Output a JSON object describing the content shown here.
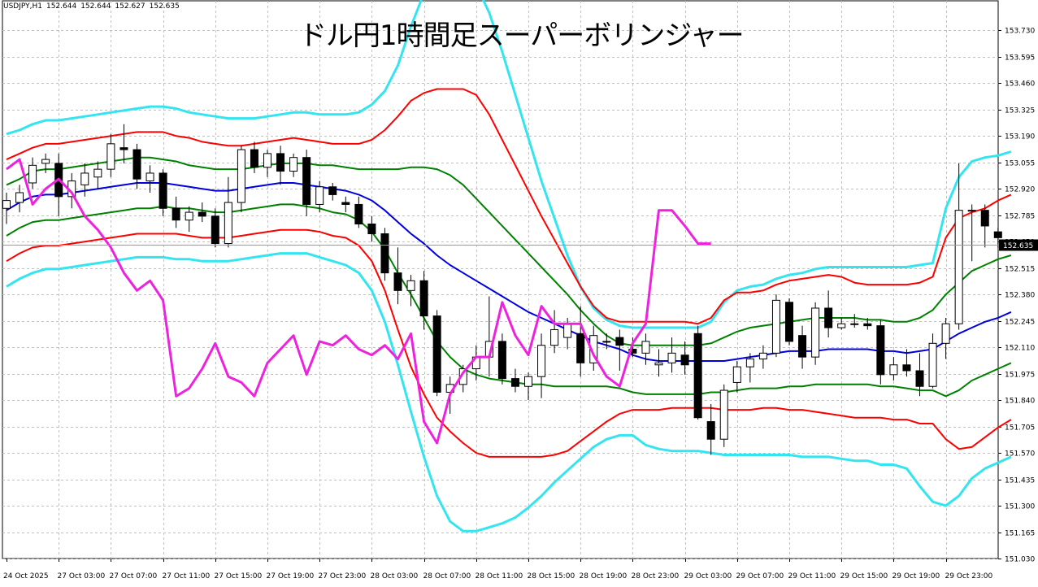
{
  "symbol_info": {
    "symbol": "USDJPY,H1",
    "open": "152.644",
    "high": "152.644",
    "low": "152.627",
    "close": "152.635"
  },
  "title": "ドル円1時間足スーパーボリンジャー",
  "current_price_label": "152.635",
  "colors": {
    "background": "#ffffff",
    "grid": "#c0c0c0",
    "sma": "#0000dd",
    "sigma1": "#008000",
    "sigma2": "#ff0000",
    "sigma3": "#33e5f0",
    "lagging_span": "#ee22dd",
    "bull_candle": "#ffffff",
    "bear_candle": "#000000"
  },
  "chart_data": {
    "type": "candlestick",
    "title": "ドル円1時間足スーパーボリンジャー",
    "symbol": "USDJPY,H1",
    "ylim": [
      151.03,
      153.86
    ],
    "y_ticks": [
      "153.730",
      "153.595",
      "153.460",
      "153.325",
      "153.190",
      "153.055",
      "152.920",
      "152.785",
      "152.650",
      "152.515",
      "152.380",
      "152.245",
      "152.110",
      "151.975",
      "151.840",
      "151.705",
      "151.570",
      "151.435",
      "151.300",
      "151.165",
      "151.030"
    ],
    "x_ticks": [
      {
        "bar": 0,
        "label": "24 Oct 2025"
      },
      {
        "bar": 4,
        "label": "27 Oct 03:00"
      },
      {
        "bar": 8,
        "label": "27 Oct 07:00"
      },
      {
        "bar": 12,
        "label": "27 Oct 11:00"
      },
      {
        "bar": 16,
        "label": "27 Oct 15:00"
      },
      {
        "bar": 20,
        "label": "27 Oct 19:00"
      },
      {
        "bar": 24,
        "label": "27 Oct 23:00"
      },
      {
        "bar": 28,
        "label": "28 Oct 03:00"
      },
      {
        "bar": 32,
        "label": "28 Oct 07:00"
      },
      {
        "bar": 36,
        "label": "28 Oct 11:00"
      },
      {
        "bar": 40,
        "label": "28 Oct 15:00"
      },
      {
        "bar": 44,
        "label": "28 Oct 19:00"
      },
      {
        "bar": 48,
        "label": "28 Oct 23:00"
      },
      {
        "bar": 52,
        "label": "29 Oct 03:00"
      },
      {
        "bar": 56,
        "label": "29 Oct 07:00"
      },
      {
        "bar": 60,
        "label": "29 Oct 11:00"
      },
      {
        "bar": 64,
        "label": "29 Oct 15:00"
      },
      {
        "bar": 68,
        "label": "29 Oct 19:00"
      },
      {
        "bar": 72,
        "label": "29 Oct 23:00"
      }
    ],
    "current_price": 152.635,
    "ohlc": [
      [
        152.82,
        152.9,
        152.74,
        152.86
      ],
      [
        152.85,
        152.94,
        152.8,
        152.9
      ],
      [
        152.95,
        153.08,
        152.92,
        153.04
      ],
      [
        153.05,
        153.1,
        153.0,
        153.07
      ],
      [
        153.05,
        153.1,
        152.78,
        152.88
      ],
      [
        152.88,
        153.0,
        152.82,
        152.96
      ],
      [
        152.94,
        153.05,
        152.88,
        153.0
      ],
      [
        152.98,
        153.06,
        152.92,
        153.02
      ],
      [
        153.02,
        153.2,
        152.98,
        153.15
      ],
      [
        153.13,
        153.25,
        153.05,
        153.12
      ],
      [
        153.12,
        153.15,
        152.92,
        152.97
      ],
      [
        152.96,
        153.04,
        152.9,
        153.0
      ],
      [
        153.0,
        153.02,
        152.78,
        152.82
      ],
      [
        152.82,
        152.88,
        152.72,
        152.76
      ],
      [
        152.76,
        152.83,
        152.7,
        152.8
      ],
      [
        152.8,
        152.85,
        152.75,
        152.78
      ],
      [
        152.78,
        152.82,
        152.62,
        152.64
      ],
      [
        152.64,
        152.98,
        152.62,
        152.85
      ],
      [
        152.85,
        153.14,
        152.8,
        153.12
      ],
      [
        153.12,
        153.16,
        153.0,
        153.03
      ],
      [
        153.03,
        153.12,
        152.98,
        153.1
      ],
      [
        153.1,
        153.14,
        152.94,
        153.01
      ],
      [
        153.01,
        153.1,
        152.98,
        153.08
      ],
      [
        153.08,
        153.12,
        152.78,
        152.84
      ],
      [
        152.84,
        152.96,
        152.8,
        152.93
      ],
      [
        152.93,
        152.95,
        152.86,
        152.89
      ],
      [
        152.85,
        152.88,
        152.8,
        152.84
      ],
      [
        152.84,
        152.88,
        152.72,
        152.74
      ],
      [
        152.74,
        152.78,
        152.65,
        152.69
      ],
      [
        152.69,
        152.72,
        152.45,
        152.49
      ],
      [
        152.49,
        152.62,
        152.33,
        152.4
      ],
      [
        152.4,
        152.48,
        152.32,
        152.45
      ],
      [
        152.45,
        152.5,
        152.2,
        152.27
      ],
      [
        152.27,
        152.3,
        151.86,
        151.88
      ],
      [
        151.88,
        151.96,
        151.77,
        151.92
      ],
      [
        151.92,
        152.02,
        151.88,
        152.0
      ],
      [
        152.0,
        152.12,
        151.94,
        152.06
      ],
      [
        152.06,
        152.37,
        151.96,
        152.14
      ],
      [
        152.14,
        152.18,
        151.92,
        151.95
      ],
      [
        151.95,
        152.0,
        151.88,
        151.91
      ],
      [
        151.91,
        151.98,
        151.84,
        151.96
      ],
      [
        151.96,
        152.18,
        151.85,
        152.12
      ],
      [
        152.12,
        152.3,
        152.08,
        152.2
      ],
      [
        152.16,
        152.26,
        152.1,
        152.23
      ],
      [
        152.18,
        152.32,
        151.96,
        152.03
      ],
      [
        152.03,
        152.22,
        151.99,
        152.17
      ],
      [
        152.14,
        152.18,
        152.1,
        152.14
      ],
      [
        152.16,
        152.2,
        151.99,
        152.12
      ],
      [
        152.1,
        152.16,
        152.06,
        152.08
      ],
      [
        152.08,
        152.18,
        152.02,
        152.14
      ],
      [
        152.02,
        152.1,
        151.96,
        152.03
      ],
      [
        152.03,
        152.16,
        151.98,
        152.08
      ],
      [
        152.07,
        152.14,
        151.97,
        152.02
      ],
      [
        152.18,
        152.22,
        151.74,
        151.75
      ],
      [
        151.73,
        151.82,
        151.56,
        151.64
      ],
      [
        151.64,
        151.92,
        151.6,
        151.89
      ],
      [
        151.93,
        152.04,
        151.88,
        152.01
      ],
      [
        152.01,
        152.08,
        151.93,
        152.05
      ],
      [
        152.05,
        152.12,
        152.0,
        152.08
      ],
      [
        152.08,
        152.38,
        152.06,
        152.35
      ],
      [
        152.34,
        152.36,
        152.12,
        152.14
      ],
      [
        152.17,
        152.22,
        152.0,
        152.06
      ],
      [
        152.06,
        152.34,
        152.02,
        152.31
      ],
      [
        152.31,
        152.4,
        152.16,
        152.21
      ],
      [
        152.21,
        152.26,
        152.2,
        152.23
      ],
      [
        152.23,
        152.28,
        152.21,
        152.23
      ],
      [
        152.23,
        152.26,
        152.2,
        152.22
      ],
      [
        152.22,
        152.25,
        151.92,
        151.97
      ],
      [
        151.97,
        152.06,
        151.94,
        152.02
      ],
      [
        152.02,
        152.1,
        151.96,
        151.99
      ],
      [
        151.99,
        152.08,
        151.86,
        151.91
      ],
      [
        151.91,
        152.18,
        151.9,
        152.13
      ],
      [
        152.13,
        152.26,
        152.05,
        152.23
      ],
      [
        152.23,
        153.05,
        152.2,
        152.81
      ],
      [
        152.81,
        152.84,
        152.55,
        152.81
      ],
      [
        152.81,
        152.84,
        152.62,
        152.73
      ],
      [
        152.7,
        152.72,
        152.62,
        152.67
      ],
      [
        152.644,
        152.644,
        152.627,
        152.635
      ]
    ],
    "bands": {
      "sma": [
        152.81,
        152.85,
        152.88,
        152.89,
        152.89,
        152.9,
        152.91,
        152.92,
        152.93,
        152.94,
        152.95,
        152.95,
        152.95,
        152.94,
        152.93,
        152.92,
        152.91,
        152.91,
        152.92,
        152.93,
        152.94,
        152.95,
        152.95,
        152.94,
        152.93,
        152.92,
        152.91,
        152.89,
        152.86,
        152.81,
        152.75,
        152.69,
        152.64,
        152.58,
        152.53,
        152.49,
        152.45,
        152.41,
        152.37,
        152.33,
        152.29,
        152.26,
        152.23,
        152.2,
        152.17,
        152.14,
        152.12,
        152.1,
        152.07,
        152.05,
        152.04,
        152.04,
        152.04,
        152.04,
        152.04,
        152.04,
        152.05,
        152.06,
        152.07,
        152.08,
        152.09,
        152.09,
        152.09,
        152.1,
        152.1,
        152.1,
        152.1,
        152.09,
        152.09,
        152.08,
        152.09,
        152.1,
        152.14,
        152.18,
        152.21,
        152.24,
        152.26,
        152.29
      ],
      "up1": [
        152.94,
        152.97,
        153.01,
        153.02,
        153.02,
        153.03,
        153.04,
        153.05,
        153.06,
        153.07,
        153.08,
        153.08,
        153.07,
        153.06,
        153.04,
        153.03,
        153.02,
        153.02,
        153.02,
        153.03,
        153.04,
        153.05,
        153.05,
        153.05,
        153.04,
        153.04,
        153.03,
        153.02,
        153.02,
        153.02,
        153.02,
        153.03,
        153.03,
        153.02,
        152.99,
        152.94,
        152.87,
        152.8,
        152.73,
        152.66,
        152.59,
        152.52,
        152.45,
        152.38,
        152.3,
        152.23,
        152.17,
        152.13,
        152.12,
        152.12,
        152.12,
        152.12,
        152.12,
        152.12,
        152.13,
        152.16,
        152.19,
        152.21,
        152.22,
        152.23,
        152.24,
        152.25,
        152.26,
        152.26,
        152.26,
        152.26,
        152.25,
        152.25,
        152.24,
        152.24,
        152.26,
        152.3,
        152.38,
        152.44,
        152.5,
        152.53,
        152.56,
        152.58
      ],
      "dn1": [
        152.68,
        152.72,
        152.75,
        152.76,
        152.76,
        152.77,
        152.78,
        152.79,
        152.8,
        152.81,
        152.82,
        152.82,
        152.83,
        152.82,
        152.82,
        152.81,
        152.8,
        152.8,
        152.81,
        152.82,
        152.83,
        152.84,
        152.84,
        152.83,
        152.82,
        152.8,
        152.79,
        152.76,
        152.7,
        152.61,
        152.49,
        152.38,
        152.26,
        152.14,
        152.06,
        152.0,
        151.97,
        151.95,
        151.94,
        151.93,
        151.92,
        151.92,
        151.91,
        151.91,
        151.91,
        151.91,
        151.91,
        151.9,
        151.88,
        151.87,
        151.87,
        151.87,
        151.87,
        151.87,
        151.88,
        151.88,
        151.89,
        151.9,
        151.9,
        151.9,
        151.91,
        151.91,
        151.92,
        151.92,
        151.92,
        151.92,
        151.92,
        151.91,
        151.91,
        151.9,
        151.89,
        151.89,
        151.86,
        151.89,
        151.94,
        151.97,
        152.0,
        152.03
      ],
      "up2": [
        153.07,
        153.1,
        153.13,
        153.15,
        153.15,
        153.16,
        153.17,
        153.18,
        153.19,
        153.2,
        153.21,
        153.21,
        153.21,
        153.19,
        153.18,
        153.16,
        153.15,
        153.14,
        153.14,
        153.15,
        153.16,
        153.17,
        153.18,
        153.17,
        153.16,
        153.15,
        153.15,
        153.15,
        153.17,
        153.22,
        153.29,
        153.37,
        153.41,
        153.43,
        153.43,
        153.43,
        153.4,
        153.3,
        153.17,
        153.04,
        152.91,
        152.78,
        152.66,
        152.54,
        152.42,
        152.32,
        152.26,
        152.24,
        152.24,
        152.24,
        152.24,
        152.24,
        152.24,
        152.23,
        152.26,
        152.35,
        152.39,
        152.39,
        152.4,
        152.43,
        152.45,
        152.46,
        152.47,
        152.48,
        152.47,
        152.44,
        152.43,
        152.43,
        152.43,
        152.43,
        152.44,
        152.47,
        152.67,
        152.77,
        152.8,
        152.82,
        152.86,
        152.89
      ],
      "dn2": [
        152.55,
        152.59,
        152.62,
        152.63,
        152.63,
        152.64,
        152.65,
        152.66,
        152.67,
        152.68,
        152.69,
        152.69,
        152.69,
        152.69,
        152.68,
        152.67,
        152.67,
        152.67,
        152.68,
        152.69,
        152.7,
        152.71,
        152.71,
        152.71,
        152.7,
        152.68,
        152.67,
        152.63,
        152.55,
        152.4,
        152.2,
        152.01,
        151.87,
        151.75,
        151.68,
        151.62,
        151.57,
        151.55,
        151.55,
        151.55,
        151.55,
        151.55,
        151.56,
        151.58,
        151.63,
        151.68,
        151.73,
        151.77,
        151.79,
        151.79,
        151.79,
        151.8,
        151.8,
        151.8,
        151.8,
        151.79,
        151.79,
        151.79,
        151.8,
        151.8,
        151.79,
        151.79,
        151.78,
        151.77,
        151.76,
        151.75,
        151.75,
        151.75,
        151.74,
        151.74,
        151.72,
        151.72,
        151.64,
        151.59,
        151.6,
        151.65,
        151.7,
        151.74
      ],
      "up3": [
        153.2,
        153.22,
        153.25,
        153.27,
        153.27,
        153.28,
        153.29,
        153.3,
        153.31,
        153.32,
        153.33,
        153.34,
        153.34,
        153.33,
        153.31,
        153.3,
        153.29,
        153.28,
        153.28,
        153.28,
        153.29,
        153.3,
        153.31,
        153.31,
        153.3,
        153.3,
        153.3,
        153.31,
        153.35,
        153.42,
        153.55,
        153.75,
        153.92,
        154.0,
        154.02,
        154.02,
        153.96,
        153.82,
        153.62,
        153.4,
        153.18,
        152.96,
        152.77,
        152.58,
        152.42,
        152.31,
        152.25,
        152.22,
        152.21,
        152.21,
        152.21,
        152.21,
        152.21,
        152.21,
        152.24,
        152.34,
        152.4,
        152.42,
        152.43,
        152.46,
        152.48,
        152.49,
        152.51,
        152.52,
        152.52,
        152.52,
        152.52,
        152.52,
        152.52,
        152.52,
        152.53,
        152.54,
        152.82,
        152.98,
        153.06,
        153.08,
        153.09,
        153.11
      ],
      "dn3": [
        152.42,
        152.46,
        152.49,
        152.51,
        152.51,
        152.52,
        152.53,
        152.54,
        152.55,
        152.56,
        152.57,
        152.57,
        152.57,
        152.56,
        152.56,
        152.55,
        152.55,
        152.55,
        152.56,
        152.57,
        152.58,
        152.59,
        152.59,
        152.59,
        152.57,
        152.55,
        152.53,
        152.49,
        152.4,
        152.24,
        152.02,
        151.78,
        151.55,
        151.35,
        151.22,
        151.17,
        151.17,
        151.19,
        151.21,
        151.24,
        151.29,
        151.35,
        151.42,
        151.48,
        151.54,
        151.6,
        151.64,
        151.66,
        151.66,
        151.61,
        151.59,
        151.58,
        151.58,
        151.58,
        151.57,
        151.56,
        151.56,
        151.56,
        151.56,
        151.56,
        151.56,
        151.55,
        151.55,
        151.55,
        151.54,
        151.53,
        151.53,
        151.51,
        151.51,
        151.49,
        151.4,
        151.32,
        151.3,
        151.35,
        151.44,
        151.49,
        151.52,
        151.55
      ]
    },
    "lagging_span": {
      "start_bar": 0,
      "values": [
        153.02,
        153.07,
        152.84,
        152.92,
        152.97,
        152.9,
        152.78,
        152.71,
        152.62,
        152.49,
        152.4,
        152.45,
        152.35,
        151.86,
        151.9,
        152.0,
        152.13,
        151.96,
        151.93,
        151.86,
        152.03,
        152.1,
        152.17,
        151.97,
        152.14,
        152.12,
        152.17,
        152.1,
        152.07,
        152.12,
        152.05,
        152.18,
        151.73,
        151.62,
        151.87,
        151.98,
        152.06,
        152.06,
        152.34,
        152.17,
        152.07,
        152.32,
        152.23,
        152.23,
        152.23,
        152.07,
        151.96,
        151.91,
        152.13,
        152.23,
        152.81,
        152.81,
        152.73,
        152.64,
        152.64
      ],
      "offset_bars": 26
    }
  },
  "note": ""
}
